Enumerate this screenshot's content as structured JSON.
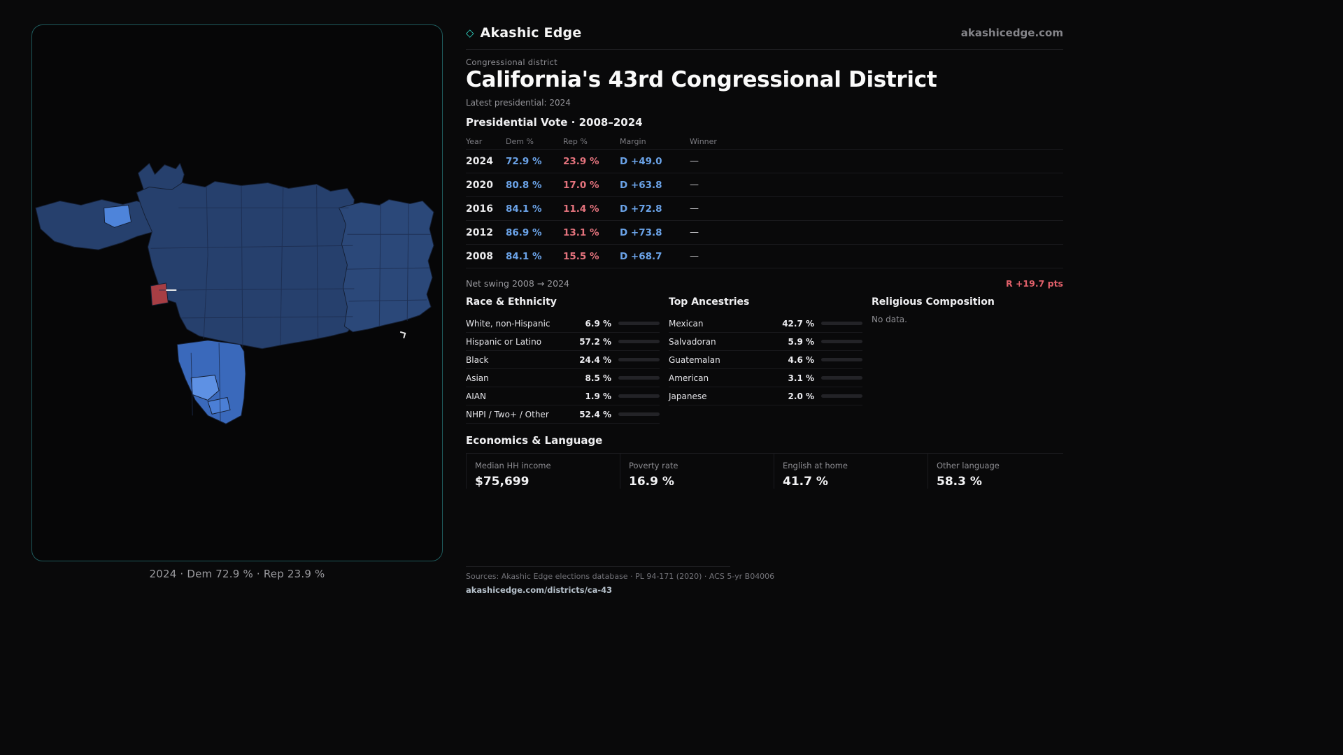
{
  "colors": {
    "accent_teal": "#2fd0c0",
    "dem_blue": "#6ba3e8",
    "rep_red": "#e4737d",
    "swing_red": "#e0606a",
    "map_dark_blue": "#26406d",
    "map_light_blue": "#4e84da",
    "map_red": "#a73e44"
  },
  "brand": {
    "icon": "◇",
    "name": "Akashic Edge",
    "site": "akashicedge.com"
  },
  "page": {
    "kicker": "Congressional district",
    "title": "California's 43rd Congressional District",
    "latest": "Latest presidential: 2024"
  },
  "map_panel": {
    "caption": "2024 · Dem 72.9 % · Rep 23.9 %"
  },
  "vote": {
    "heading": "Presidential Vote · 2008–2024",
    "columns": {
      "year": "Year",
      "dem": "Dem %",
      "rep": "Rep %",
      "margin": "Margin",
      "winner": "Winner"
    },
    "rows": [
      {
        "year": "2024",
        "dem": "72.9 %",
        "rep": "23.9 %",
        "margin": "D +49.0",
        "winner": "—"
      },
      {
        "year": "2020",
        "dem": "80.8 %",
        "rep": "17.0 %",
        "margin": "D +63.8",
        "winner": "—"
      },
      {
        "year": "2016",
        "dem": "84.1 %",
        "rep": "11.4 %",
        "margin": "D +72.8",
        "winner": "—"
      },
      {
        "year": "2012",
        "dem": "86.9 %",
        "rep": "13.1 %",
        "margin": "D +73.8",
        "winner": "—"
      },
      {
        "year": "2008",
        "dem": "84.1 %",
        "rep": "15.5 %",
        "margin": "D +68.7",
        "winner": "—"
      }
    ],
    "net_swing_label": "Net swing 2008 → 2024",
    "net_swing_value": "R +19.7 pts"
  },
  "race": {
    "heading": "Race & Ethnicity",
    "rows": [
      {
        "label": "White, non-Hispanic",
        "value": "6.9 %",
        "pct": 6.9
      },
      {
        "label": "Hispanic or Latino",
        "value": "57.2 %",
        "pct": 57.2
      },
      {
        "label": "Black",
        "value": "24.4 %",
        "pct": 24.4
      },
      {
        "label": "Asian",
        "value": "8.5 %",
        "pct": 8.5
      },
      {
        "label": "AIAN",
        "value": "1.9 %",
        "pct": 1.9
      },
      {
        "label": "NHPI / Two+ / Other",
        "value": "52.4 %",
        "pct": 52.4
      }
    ]
  },
  "ancestries": {
    "heading": "Top Ancestries",
    "rows": [
      {
        "label": "Mexican",
        "value": "42.7 %",
        "pct": 42.7
      },
      {
        "label": "Salvadoran",
        "value": "5.9 %",
        "pct": 5.9
      },
      {
        "label": "Guatemalan",
        "value": "4.6 %",
        "pct": 4.6
      },
      {
        "label": "American",
        "value": "3.1 %",
        "pct": 3.1
      },
      {
        "label": "Japanese",
        "value": "2.0 %",
        "pct": 2.0
      }
    ]
  },
  "religion": {
    "heading": "Religious Composition",
    "empty": "No data."
  },
  "economics": {
    "heading": "Economics & Language",
    "stats": [
      {
        "label": "Median HH income",
        "value": "$75,699"
      },
      {
        "label": "Poverty rate",
        "value": "16.9 %"
      },
      {
        "label": "English at home",
        "value": "41.7 %"
      },
      {
        "label": "Other language",
        "value": "58.3 %"
      }
    ]
  },
  "footer": {
    "sources": "Sources: Akashic Edge elections database · PL 94-171 (2020) · ACS 5-yr B04006",
    "link": "akashicedge.com/districts/ca-43"
  }
}
